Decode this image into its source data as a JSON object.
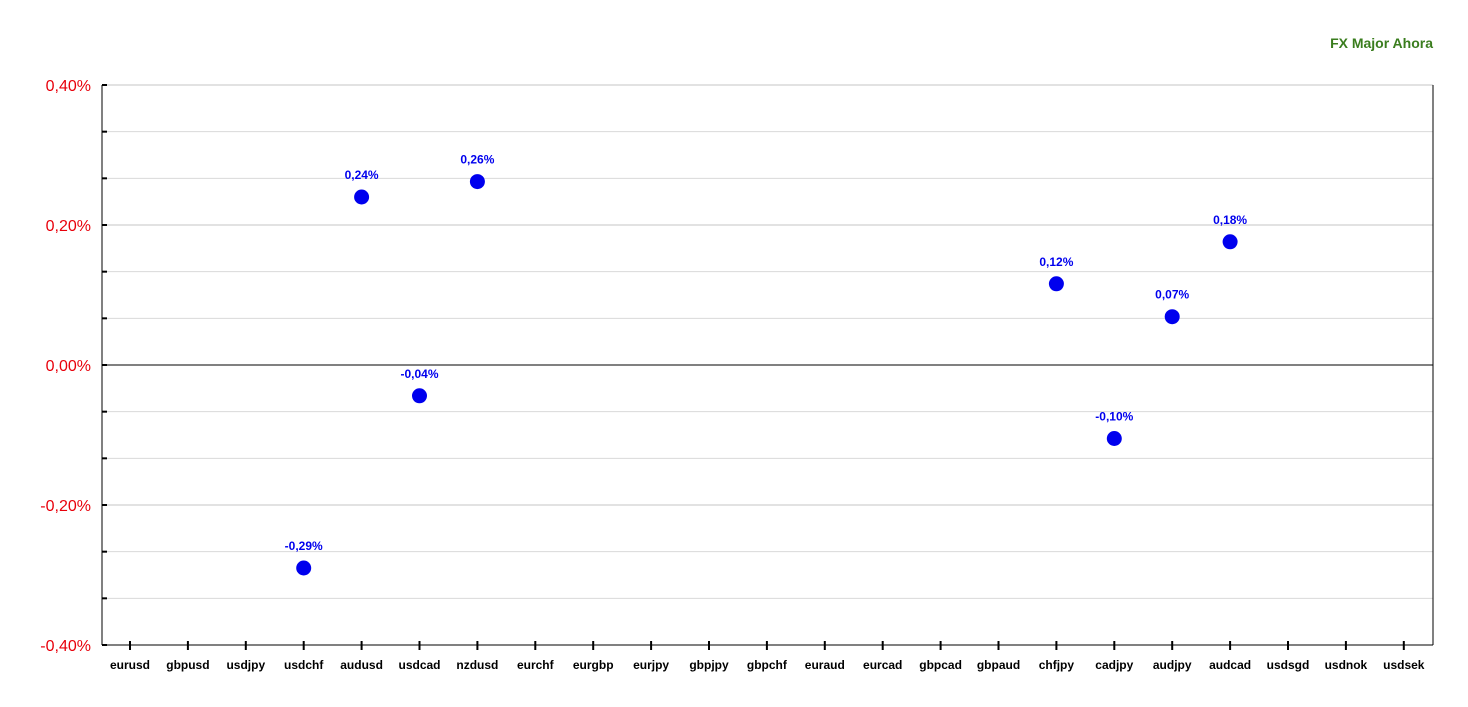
{
  "chart_data": {
    "type": "scatter",
    "title": "FX Major Ahora",
    "xlabel": "",
    "ylabel": "",
    "ylim": [
      -0.4,
      0.4
    ],
    "y_ticks": [
      "0,40%",
      "0,20%",
      "0,00%",
      "-0,20%",
      "-0,40%"
    ],
    "y_tick_values": [
      0.4,
      0.2,
      0.0,
      -0.2,
      -0.4
    ],
    "categories": [
      "eurusd",
      "gbpusd",
      "usdjpy",
      "usdchf",
      "audusd",
      "usdcad",
      "nzdusd",
      "eurchf",
      "eurgbp",
      "eurjpy",
      "gbpjpy",
      "gbpchf",
      "euraud",
      "eurcad",
      "gbpcad",
      "gbpaud",
      "chfjpy",
      "cadjpy",
      "audjpy",
      "audcad",
      "usdsgd",
      "usdnok",
      "usdsek"
    ],
    "points": [
      {
        "category": "usdchf",
        "value": -0.29,
        "label": "-0,29%"
      },
      {
        "category": "audusd",
        "value": 0.24,
        "label": "0,24%"
      },
      {
        "category": "usdcad",
        "value": -0.044,
        "label": "-0,04%"
      },
      {
        "category": "nzdusd",
        "value": 0.262,
        "label": "0,26%"
      },
      {
        "category": "chfjpy",
        "value": 0.116,
        "label": "0,12%"
      },
      {
        "category": "cadjpy",
        "value": -0.105,
        "label": "-0,10%"
      },
      {
        "category": "audjpy",
        "value": 0.069,
        "label": "0,07%"
      },
      {
        "category": "audcad",
        "value": 0.176,
        "label": "0,18%"
      }
    ],
    "grid": true,
    "colors": {
      "title": "#3a7d1e",
      "y_tick_labels": "#e8000b",
      "points": "#0000ee",
      "point_labels": "#0000ee",
      "x_tick_labels": "#000000",
      "grid": "#d9d9d9",
      "zero_line": "#000000"
    }
  }
}
